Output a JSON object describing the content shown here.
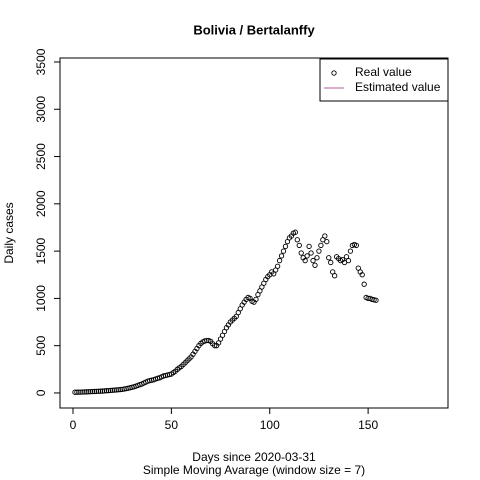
{
  "chart_data": {
    "type": "scatter",
    "title": "Bolivia / Bertalanffy",
    "x_label": "Days since 2020-03-31",
    "subtitle": "Simple Moving Avarage (window size = 7)",
    "y_label": "Daily cases",
    "x": [
      1,
      2,
      3,
      4,
      5,
      6,
      7,
      8,
      9,
      10,
      11,
      12,
      13,
      14,
      15,
      16,
      17,
      18,
      19,
      20,
      21,
      22,
      23,
      24,
      25,
      26,
      27,
      28,
      29,
      30,
      31,
      32,
      33,
      34,
      35,
      36,
      37,
      38,
      39,
      40,
      41,
      42,
      43,
      44,
      45,
      46,
      47,
      48,
      49,
      50,
      51,
      52,
      53,
      54,
      55,
      56,
      57,
      58,
      59,
      60,
      61,
      62,
      63,
      64,
      65,
      66,
      67,
      68,
      69,
      70,
      71,
      72,
      73,
      74,
      75,
      76,
      77,
      78,
      79,
      80,
      81,
      82,
      83,
      84,
      85,
      86,
      87,
      88,
      89,
      90,
      91,
      92,
      93,
      94,
      95,
      96,
      97,
      98,
      99,
      100,
      101,
      102,
      103,
      104,
      105,
      106,
      107,
      108,
      109,
      110,
      111,
      112,
      113,
      114,
      115,
      116,
      117,
      118,
      119,
      120,
      121,
      122,
      123,
      124,
      125,
      126,
      127,
      128,
      129,
      130,
      131,
      132,
      133,
      134,
      135,
      136,
      137,
      138,
      139,
      140,
      141,
      142,
      143,
      144,
      145,
      146,
      147,
      148,
      149,
      150,
      151,
      152,
      153,
      154
    ],
    "series": [
      {
        "name": "Real value",
        "color": "#000000",
        "values": [
          8,
          8,
          9,
          9,
          10,
          11,
          12,
          13,
          14,
          15,
          16,
          17,
          18,
          19,
          20,
          22,
          24,
          25,
          27,
          29,
          30,
          32,
          34,
          36,
          38,
          42,
          46,
          50,
          55,
          60,
          66,
          72,
          80,
          88,
          95,
          105,
          115,
          125,
          130,
          135,
          140,
          148,
          155,
          160,
          170,
          180,
          185,
          190,
          195,
          200,
          215,
          230,
          250,
          265,
          280,
          300,
          320,
          340,
          360,
          380,
          410,
          440,
          470,
          500,
          525,
          540,
          550,
          555,
          555,
          545,
          520,
          500,
          500,
          530,
          570,
          610,
          650,
          690,
          720,
          750,
          770,
          790,
          810,
          850,
          890,
          930,
          960,
          990,
          1010,
          1000,
          970,
          960,
          990,
          1040,
          1080,
          1120,
          1160,
          1200,
          1230,
          1250,
          1280,
          1260,
          1300,
          1340,
          1400,
          1450,
          1500,
          1550,
          1600,
          1640,
          1660,
          1690,
          1700,
          1620,
          1560,
          1480,
          1430,
          1400,
          1450,
          1550,
          1480,
          1400,
          1350,
          1430,
          1500,
          1560,
          1620,
          1660,
          1600,
          1430,
          1380,
          1280,
          1240,
          1440,
          1420,
          1400,
          1410,
          1380,
          1440,
          1400,
          1500,
          1560,
          1570,
          1560,
          1320,
          1280,
          1250,
          1150,
          1010,
          1000,
          1000,
          990,
          985,
          980
        ]
      }
    ],
    "legend": [
      {
        "label": "Real value",
        "marker": "circle",
        "color": "#000000"
      },
      {
        "label": "Estimated value",
        "marker": "line",
        "color": "#b05c9a"
      }
    ],
    "legend_position": "top-right",
    "xlim": [
      -6.6,
      190.6
    ],
    "xticks": [
      0,
      50,
      100,
      150
    ],
    "ylim": [
      -159,
      3542
    ],
    "yticks": [
      0,
      500,
      1000,
      1500,
      2000,
      2500,
      3000,
      3500
    ]
  }
}
